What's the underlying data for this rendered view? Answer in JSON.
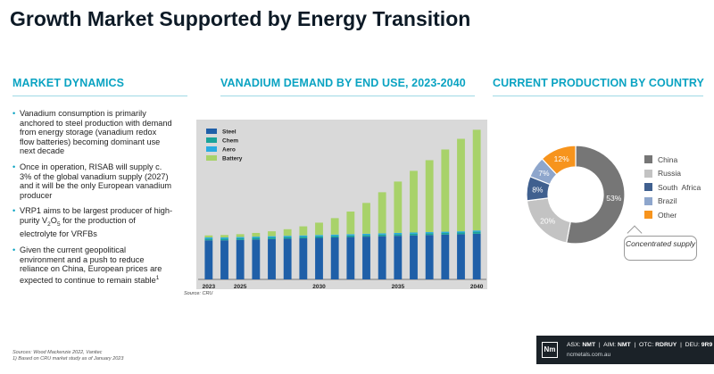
{
  "title": "Growth Market Supported by Energy Transition",
  "sections": {
    "market_dynamics": "MARKET DYNAMICS",
    "demand": "VANADIUM DEMAND BY END USE, 2023-2040",
    "production": "CURRENT PRODUCTION BY COUNTRY"
  },
  "bullets": {
    "b1": "Vanadium consumption is primarily anchored to steel production with demand from energy storage (vanadium redox flow batteries) becoming dominant use next decade",
    "b2": "Once in operation, RISAB will supply c. 3% of the global vanadium supply (2027) and it will be the only European vanadium producer",
    "b3_pre": "VRP1 aims to be largest producer of high-purity V",
    "b3_sub1": "2",
    "b3_mid": "O",
    "b3_sub2": "5",
    "b3_post": " for the production of electrolyte for VRFBs",
    "b4_main": "Given the current geopolitical environment and a push to reduce reliance on China, European prices are expected to continue to remain stable",
    "b4_sup": "1"
  },
  "chart_source": "Source: CRU",
  "callout": "Concentrated supply",
  "footnotes": {
    "line1": "Sources: Wood Mackenzie 2022, Vanitec",
    "line2": "1)  Based on CRU market study as of January 2023"
  },
  "footer": {
    "logo": "Nm",
    "asx_label": "ASX: ",
    "asx_value": "NMT",
    "aim_label": "  |  AIM: ",
    "aim_value": "NMT",
    "otc_label": "  |  OTC: ",
    "otc_value": "RDRUY",
    "deu_label": "  |  DEU: ",
    "deu_value": "9R9",
    "url": "ncmetals.com.au"
  },
  "chart_data": [
    {
      "type": "bar",
      "stacked": true,
      "categories": [
        "2023",
        "2024",
        "2025",
        "2026",
        "2027",
        "2028",
        "2029",
        "2030",
        "2031",
        "2032",
        "2033",
        "2034",
        "2035",
        "2036",
        "2037",
        "2038",
        "2039",
        "2040"
      ],
      "tick_labels": [
        "2023",
        "2025",
        "2030",
        "2035",
        "2040"
      ],
      "series": [
        {
          "name": "Steel",
          "color": "#1f5fa8",
          "values": [
            95,
            95,
            96,
            97,
            98,
            99,
            100,
            101,
            102,
            103,
            104,
            105,
            106,
            107,
            108,
            109,
            110,
            111
          ]
        },
        {
          "name": "Chem",
          "color": "#1aa39a",
          "values": [
            4,
            4,
            4,
            4,
            4,
            4,
            4,
            4,
            4,
            4,
            4,
            4,
            4,
            4,
            4,
            4,
            4,
            5
          ]
        },
        {
          "name": "Aero",
          "color": "#29abe2",
          "values": [
            3,
            3,
            3,
            3,
            3,
            3,
            3,
            3,
            3,
            3,
            3,
            3,
            3,
            3,
            3,
            3,
            3,
            3
          ]
        },
        {
          "name": "Battery",
          "color": "#a8d26a",
          "values": [
            5,
            6,
            7,
            9,
            12,
            16,
            22,
            30,
            40,
            55,
            75,
            100,
            125,
            150,
            175,
            200,
            225,
            245
          ]
        }
      ],
      "ylim": [
        0,
        380
      ],
      "legend": "top-left"
    },
    {
      "type": "pie",
      "donut": true,
      "labels": [
        "China",
        "Russia",
        "South  Africa",
        "Brazil",
        "Other"
      ],
      "values": [
        53,
        20,
        8,
        7,
        12
      ],
      "value_labels": [
        "53%",
        "20%",
        "8%",
        "7%",
        "12%"
      ],
      "colors": [
        "#767676",
        "#c3c3c3",
        "#40608f",
        "#8ea6cc",
        "#f7941d"
      ],
      "legend": "right"
    }
  ]
}
